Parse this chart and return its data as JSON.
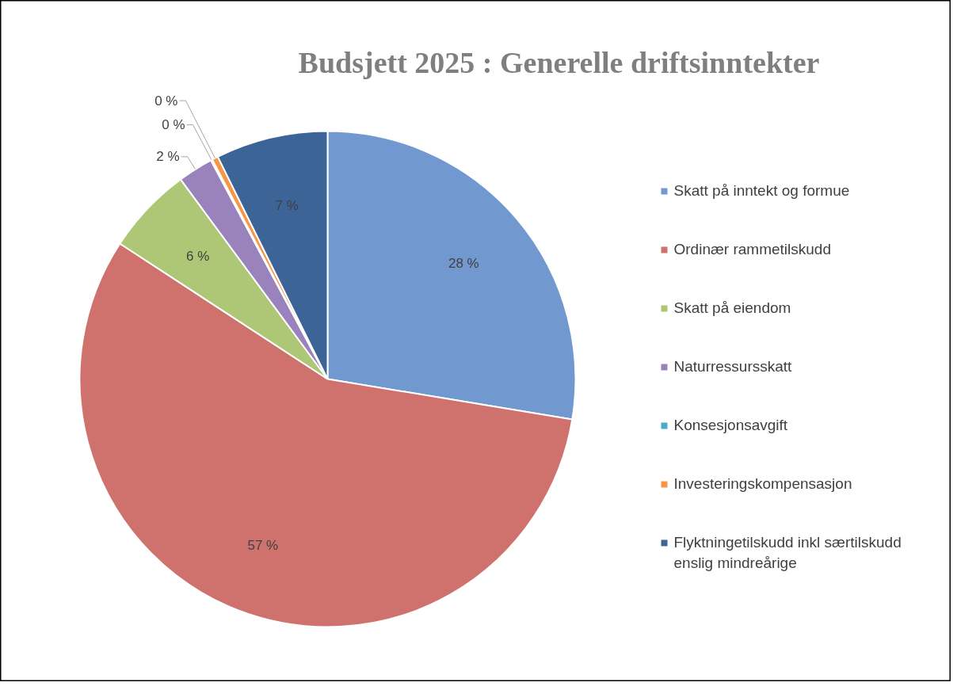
{
  "chart_data": {
    "type": "pie",
    "title": "Budsjett 2025 : Generelle driftsinntekter",
    "categories": [
      "Skatt på inntekt og formue",
      "Ordinær rammetilskudd",
      "Skatt på eiendom",
      "Naturressursskatt",
      "Konsesjonsavgift",
      "Investeringskompensasjon",
      "Flyktningetilskudd inkl særtilskudd enslig mindreårige"
    ],
    "values": [
      27.6,
      56.6,
      5.7,
      2.3,
      0.1,
      0.4,
      7.3
    ],
    "value_labels": [
      "28 %",
      "57 %",
      "6 %",
      "2 %",
      "0 %",
      "0 %",
      "7 %"
    ],
    "colors": [
      "#7199cf",
      "#cf726e",
      "#adc776",
      "#9a83bc",
      "#4bacc6",
      "#f79646",
      "#3d6496"
    ],
    "legend": "right"
  }
}
